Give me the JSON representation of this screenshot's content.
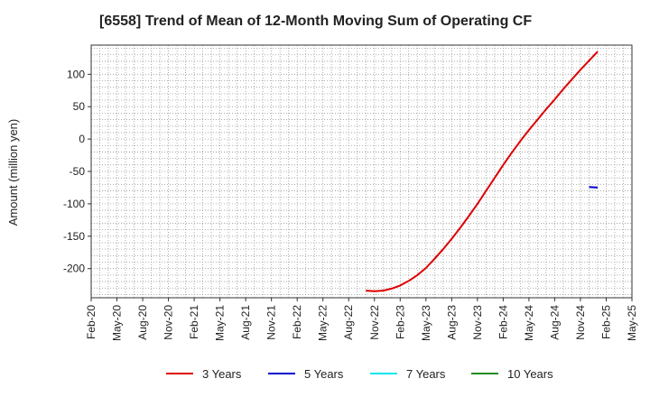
{
  "chart_data": {
    "type": "line",
    "title": "[6558]  Trend of Mean of 12-Month Moving Sum of Operating CF",
    "xlabel": "",
    "ylabel": "Amount (million yen)",
    "x_ticks": [
      "Feb-20",
      "May-20",
      "Aug-20",
      "Nov-20",
      "Feb-21",
      "May-21",
      "Aug-21",
      "Nov-21",
      "Feb-22",
      "May-22",
      "Aug-22",
      "Nov-22",
      "Feb-23",
      "May-23",
      "Aug-23",
      "Nov-23",
      "Feb-24",
      "May-24",
      "Aug-24",
      "Nov-24",
      "Feb-25",
      "May-25"
    ],
    "y_ticks": [
      100,
      50,
      0,
      -50,
      -100,
      -150,
      -200
    ],
    "ylim": [
      -245,
      145
    ],
    "xlim": [
      "2020-02",
      "2025-05"
    ],
    "grid": true,
    "legend_position": "bottom",
    "series": [
      {
        "name": "3 Years",
        "color": "#dd0000",
        "points": [
          [
            "2022-10",
            -234
          ],
          [
            "2022-11",
            -235
          ],
          [
            "2022-12",
            -234
          ],
          [
            "2023-01",
            -231
          ],
          [
            "2023-02",
            -226
          ],
          [
            "2023-03",
            -219
          ],
          [
            "2023-04",
            -210
          ],
          [
            "2023-05",
            -199
          ],
          [
            "2023-06",
            -185
          ],
          [
            "2023-07",
            -170
          ],
          [
            "2023-08",
            -154
          ],
          [
            "2023-09",
            -137
          ],
          [
            "2023-10",
            -119
          ],
          [
            "2023-11",
            -100
          ],
          [
            "2023-12",
            -80
          ],
          [
            "2024-01",
            -60
          ],
          [
            "2024-02",
            -40
          ],
          [
            "2024-03",
            -21
          ],
          [
            "2024-04",
            -3
          ],
          [
            "2024-05",
            14
          ],
          [
            "2024-06",
            30
          ],
          [
            "2024-07",
            46
          ],
          [
            "2024-08",
            61
          ],
          [
            "2024-09",
            77
          ],
          [
            "2024-10",
            92
          ],
          [
            "2024-11",
            107
          ],
          [
            "2024-12",
            121
          ],
          [
            "2025-01",
            135
          ]
        ]
      },
      {
        "name": "5 Years",
        "color": "#0000cc",
        "points": [
          [
            "2024-12",
            -74
          ],
          [
            "2025-01",
            -75
          ]
        ]
      },
      {
        "name": "7 Years",
        "color": "#00e5ee",
        "points": []
      },
      {
        "name": "10 Years",
        "color": "#228b22",
        "points": []
      }
    ]
  }
}
